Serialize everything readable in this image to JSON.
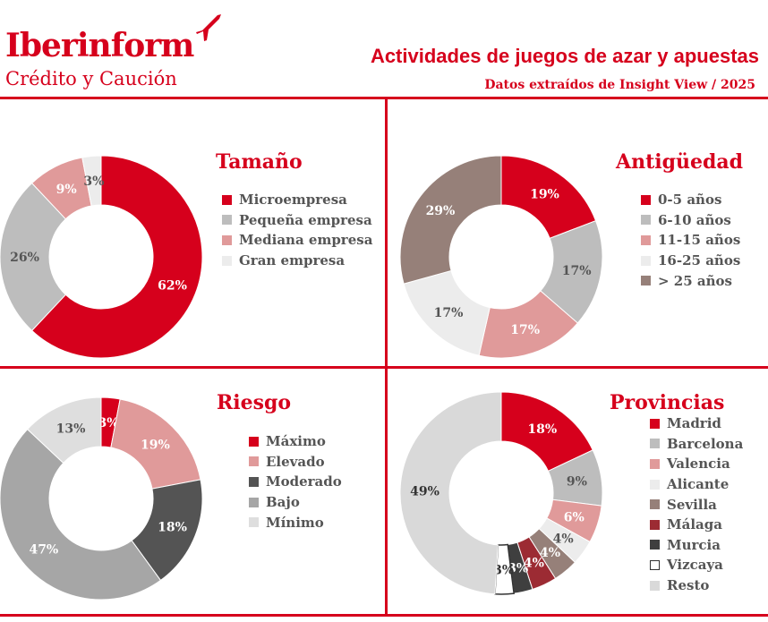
{
  "header": {
    "brand": "Iberinform",
    "brand_sub": "Crédito y Caución",
    "title": "Actividades de juegos de azar y apuestas",
    "subtitle": "Datos extraídos de Insight View / 2025"
  },
  "colors": {
    "accent": "#d6001c"
  },
  "chart_data": [
    {
      "type": "pie",
      "title": "Tamaño",
      "categories": [
        "Microempresa",
        "Pequeña empresa",
        "Mediana empresa",
        "Gran empresa"
      ],
      "values": [
        62,
        26,
        9,
        3
      ],
      "labels": [
        "62%",
        "26%",
        "9%",
        "3%"
      ],
      "colors": [
        "#d6001c",
        "#bdbdbd",
        "#e09a9a",
        "#ececec"
      ],
      "legend": "right"
    },
    {
      "type": "pie",
      "title": "Antigüedad",
      "categories": [
        "0-5 años",
        "6-10 años",
        "11-15 años",
        "16-25 años",
        "> 25 años"
      ],
      "values": [
        19,
        17,
        17,
        17,
        29
      ],
      "labels": [
        "19%",
        "17%",
        "17%",
        "17%",
        "29%"
      ],
      "colors": [
        "#d6001c",
        "#bdbdbd",
        "#e09a9a",
        "#ececec",
        "#968079"
      ],
      "legend": "right"
    },
    {
      "type": "pie",
      "title": "Riesgo",
      "categories": [
        "Máximo",
        "Elevado",
        "Moderado",
        "Bajo",
        "Mínimo"
      ],
      "values": [
        3,
        19,
        18,
        47,
        13
      ],
      "labels": [
        "3%",
        "19%",
        "18%",
        "47%",
        "13%"
      ],
      "colors": [
        "#d6001c",
        "#e09a9a",
        "#545454",
        "#a6a6a6",
        "#dedede"
      ],
      "legend": "right"
    },
    {
      "type": "pie",
      "title": "Provincias",
      "categories": [
        "Madrid",
        "Barcelona",
        "Valencia",
        "Alicante",
        "Sevilla",
        "Málaga",
        "Murcia",
        "Vizcaya",
        "Resto"
      ],
      "values": [
        18,
        9,
        6,
        4,
        4,
        4,
        3,
        3,
        49
      ],
      "labels": [
        "18%",
        "9%",
        "6%",
        "4%",
        "4%",
        "4%",
        "3%",
        "3%",
        "49%"
      ],
      "colors": [
        "#d6001c",
        "#bdbdbd",
        "#e09a9a",
        "#ececec",
        "#968079",
        "#9c2b33",
        "#3f3f3f",
        "#ffffff",
        "#d9d9d9"
      ],
      "legend": "right"
    }
  ]
}
